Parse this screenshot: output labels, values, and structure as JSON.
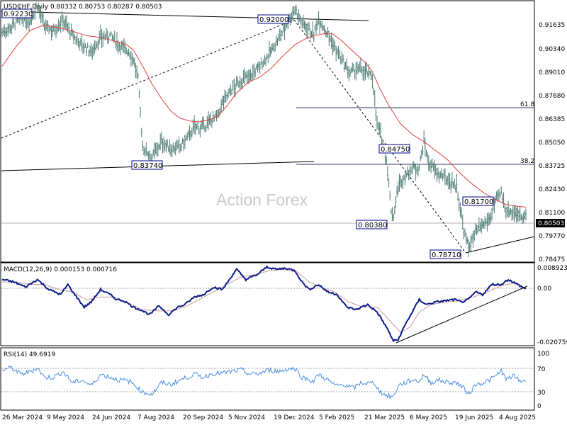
{
  "colors": {
    "price": "#4a7a72",
    "ma": "#e04040",
    "macd": "#0a1a8a",
    "signal": "#c89a9a",
    "rsi": "#4a8ee0",
    "line": "#000000",
    "box_border": "#00008b",
    "grid_dash": "#9a9a9a"
  },
  "header": {
    "price_title": "USDCHF,Daily  0.80332 0.80753 0.80287 0.80503",
    "macd_title": "MACD(12,26,9) 0.000153 0.000716",
    "rsi_title": "RSI(14) 49.6919"
  },
  "watermark": "Action Forex",
  "current_price": "0.80503",
  "chart_data": [
    {
      "type": "line",
      "panel": "price",
      "y_ticks": [
        "0.91635",
        "0.90340",
        "0.89010",
        "0.87680",
        "0.86385",
        "0.85050",
        "0.83725",
        "0.82430",
        "0.81100",
        "0.79770",
        "0.78475"
      ],
      "ylim": [
        0.7805,
        0.9225
      ],
      "x_ticks": [
        "26 Mar 2024",
        "9 May 2024",
        "24 Jun 2024",
        "7 Aug 2024",
        "20 Sep 2024",
        "5 Nov 2024",
        "19 Dec 2024",
        "5 Feb 2025",
        "21 Mar 2025",
        "6 May 2025",
        "19 Jun 2025",
        "4 Aug 2025"
      ],
      "series_close_anchors": [
        [
          0,
          0.907
        ],
        [
          8,
          0.91
        ],
        [
          16,
          0.915
        ],
        [
          24,
          0.913
        ],
        [
          30,
          0.9223
        ],
        [
          36,
          0.91
        ],
        [
          44,
          0.908
        ],
        [
          52,
          0.914
        ],
        [
          60,
          0.905
        ],
        [
          68,
          0.9
        ],
        [
          76,
          0.896
        ],
        [
          84,
          0.904
        ],
        [
          92,
          0.905
        ],
        [
          100,
          0.9
        ],
        [
          108,
          0.896
        ],
        [
          112,
          0.892
        ],
        [
          116,
          0.881
        ],
        [
          120,
          0.843
        ],
        [
          124,
          0.84
        ],
        [
          128,
          0.8374
        ],
        [
          132,
          0.842
        ],
        [
          136,
          0.846
        ],
        [
          144,
          0.842
        ],
        [
          152,
          0.843
        ],
        [
          158,
          0.848
        ],
        [
          164,
          0.854
        ],
        [
          172,
          0.854
        ],
        [
          180,
          0.859
        ],
        [
          184,
          0.86
        ],
        [
          188,
          0.868
        ],
        [
          196,
          0.875
        ],
        [
          204,
          0.88
        ],
        [
          212,
          0.883
        ],
        [
          220,
          0.888
        ],
        [
          228,
          0.895
        ],
        [
          236,
          0.903
        ],
        [
          244,
          0.913
        ],
        [
          250,
          0.92
        ],
        [
          256,
          0.912
        ],
        [
          262,
          0.909
        ],
        [
          266,
          0.905
        ],
        [
          270,
          0.915
        ],
        [
          274,
          0.91
        ],
        [
          278,
          0.906
        ],
        [
          284,
          0.898
        ],
        [
          290,
          0.891
        ],
        [
          296,
          0.884
        ],
        [
          302,
          0.886
        ],
        [
          308,
          0.886
        ],
        [
          312,
          0.884
        ],
        [
          316,
          0.882
        ],
        [
          320,
          0.856
        ],
        [
          324,
          0.8475
        ],
        [
          328,
          0.836
        ],
        [
          332,
          0.808
        ],
        [
          334,
          0.804
        ],
        [
          338,
          0.821
        ],
        [
          344,
          0.827
        ],
        [
          350,
          0.831
        ],
        [
          356,
          0.832
        ],
        [
          360,
          0.846
        ],
        [
          364,
          0.834
        ],
        [
          372,
          0.828
        ],
        [
          380,
          0.825
        ],
        [
          388,
          0.821
        ],
        [
          394,
          0.796
        ],
        [
          398,
          0.7871
        ],
        [
          404,
          0.795
        ],
        [
          410,
          0.799
        ],
        [
          416,
          0.803
        ],
        [
          422,
          0.814
        ],
        [
          426,
          0.817
        ],
        [
          430,
          0.808
        ],
        [
          436,
          0.807
        ],
        [
          442,
          0.805
        ],
        [
          447,
          0.80503
        ]
      ],
      "ma_anchors": [
        [
          0,
          0.888
        ],
        [
          12,
          0.899
        ],
        [
          24,
          0.908
        ],
        [
          36,
          0.911
        ],
        [
          48,
          0.9095
        ],
        [
          60,
          0.9075
        ],
        [
          72,
          0.905
        ],
        [
          84,
          0.904
        ],
        [
          96,
          0.902
        ],
        [
          106,
          0.9
        ],
        [
          112,
          0.897
        ],
        [
          120,
          0.888
        ],
        [
          128,
          0.878
        ],
        [
          136,
          0.87
        ],
        [
          144,
          0.863
        ],
        [
          152,
          0.859
        ],
        [
          160,
          0.8575
        ],
        [
          168,
          0.857
        ],
        [
          176,
          0.858
        ],
        [
          184,
          0.86
        ],
        [
          192,
          0.866
        ],
        [
          200,
          0.873
        ],
        [
          210,
          0.879
        ],
        [
          220,
          0.882
        ],
        [
          230,
          0.887
        ],
        [
          240,
          0.894
        ],
        [
          250,
          0.9
        ],
        [
          258,
          0.903
        ],
        [
          266,
          0.905
        ],
        [
          274,
          0.906
        ],
        [
          282,
          0.906
        ],
        [
          290,
          0.902
        ],
        [
          300,
          0.896
        ],
        [
          310,
          0.89
        ],
        [
          316,
          0.885
        ],
        [
          322,
          0.876
        ],
        [
          330,
          0.866
        ],
        [
          340,
          0.856
        ],
        [
          350,
          0.85
        ],
        [
          360,
          0.846
        ],
        [
          370,
          0.841
        ],
        [
          380,
          0.836
        ],
        [
          390,
          0.829
        ],
        [
          400,
          0.823
        ],
        [
          410,
          0.818
        ],
        [
          420,
          0.814
        ],
        [
          430,
          0.811
        ],
        [
          440,
          0.81
        ],
        [
          447,
          0.8095
        ]
      ],
      "annotations": [
        "0.92230",
        "0.92000",
        "0.83740",
        "0.84750",
        "0.80380",
        "0.81700",
        "0.78710",
        "61.8",
        "38.2"
      ]
    },
    {
      "type": "line",
      "panel": "macd",
      "series_name": "MACD(12,26,9)",
      "y_ticks": [
        "0.008923",
        "0.00",
        "-0.020759"
      ],
      "ylim": [
        -0.0218,
        0.0098
      ],
      "macd_anchors": [
        [
          0,
          0.004
        ],
        [
          10,
          0.003
        ],
        [
          20,
          0.001
        ],
        [
          30,
          0.004
        ],
        [
          40,
          0.0
        ],
        [
          50,
          -0.002
        ],
        [
          56,
          0.002
        ],
        [
          62,
          -0.002
        ],
        [
          70,
          -0.007
        ],
        [
          76,
          -0.005
        ],
        [
          84,
          0.0
        ],
        [
          92,
          -0.002
        ],
        [
          98,
          -0.004
        ],
        [
          104,
          -0.0045
        ],
        [
          112,
          -0.007
        ],
        [
          118,
          -0.008
        ],
        [
          126,
          -0.01
        ],
        [
          134,
          -0.0065
        ],
        [
          142,
          -0.01
        ],
        [
          150,
          -0.007
        ],
        [
          156,
          -0.006
        ],
        [
          164,
          -0.003
        ],
        [
          172,
          -0.002
        ],
        [
          180,
          0.001
        ],
        [
          188,
          0.0
        ],
        [
          194,
          0.004
        ],
        [
          200,
          0.008
        ],
        [
          208,
          0.004
        ],
        [
          218,
          0.006
        ],
        [
          226,
          0.009
        ],
        [
          234,
          0.008
        ],
        [
          242,
          0.0085
        ],
        [
          250,
          0.0075
        ],
        [
          256,
          0.003
        ],
        [
          262,
          0.0
        ],
        [
          270,
          0.002
        ],
        [
          278,
          -0.001
        ],
        [
          286,
          -0.002
        ],
        [
          294,
          -0.007
        ],
        [
          302,
          -0.008
        ],
        [
          312,
          -0.006
        ],
        [
          320,
          -0.009
        ],
        [
          328,
          -0.015
        ],
        [
          334,
          -0.0205
        ],
        [
          338,
          -0.02
        ],
        [
          344,
          -0.014
        ],
        [
          350,
          -0.009
        ],
        [
          356,
          -0.004
        ],
        [
          362,
          -0.006
        ],
        [
          370,
          -0.005
        ],
        [
          378,
          -0.0045
        ],
        [
          386,
          -0.004
        ],
        [
          392,
          -0.005
        ],
        [
          398,
          -0.004
        ],
        [
          404,
          -0.001
        ],
        [
          410,
          -0.002
        ],
        [
          418,
          0.002
        ],
        [
          426,
          0.002
        ],
        [
          432,
          0.004
        ],
        [
          440,
          0.002
        ],
        [
          447,
          0.0002
        ]
      ],
      "signal_anchors": [
        [
          0,
          0.003
        ],
        [
          12,
          0.003
        ],
        [
          24,
          0.002
        ],
        [
          36,
          0.002
        ],
        [
          48,
          0.0
        ],
        [
          60,
          -0.001
        ],
        [
          72,
          -0.004
        ],
        [
          84,
          -0.003
        ],
        [
          96,
          -0.003
        ],
        [
          108,
          -0.0055
        ],
        [
          120,
          -0.008
        ],
        [
          132,
          -0.0085
        ],
        [
          144,
          -0.0085
        ],
        [
          156,
          -0.007
        ],
        [
          168,
          -0.004
        ],
        [
          180,
          -0.001
        ],
        [
          192,
          0.002
        ],
        [
          204,
          0.005
        ],
        [
          216,
          0.006
        ],
        [
          228,
          0.0075
        ],
        [
          240,
          0.008
        ],
        [
          252,
          0.007
        ],
        [
          262,
          0.003
        ],
        [
          272,
          0.001
        ],
        [
          284,
          -0.001
        ],
        [
          296,
          -0.005
        ],
        [
          308,
          -0.007
        ],
        [
          320,
          -0.007
        ],
        [
          330,
          -0.012
        ],
        [
          340,
          -0.017
        ],
        [
          348,
          -0.015
        ],
        [
          356,
          -0.009
        ],
        [
          366,
          -0.006
        ],
        [
          378,
          -0.005
        ],
        [
          390,
          -0.0045
        ],
        [
          402,
          -0.003
        ],
        [
          414,
          -0.001
        ],
        [
          426,
          0.0015
        ],
        [
          436,
          0.0025
        ],
        [
          447,
          0.0007
        ]
      ]
    },
    {
      "type": "line",
      "panel": "rsi",
      "series_name": "RSI(14)",
      "y_ticks": [
        "100",
        "70",
        "30",
        "0"
      ],
      "ylim": [
        0,
        100
      ],
      "rsi_anchors": [
        [
          0,
          68
        ],
        [
          8,
          72
        ],
        [
          16,
          60
        ],
        [
          24,
          65
        ],
        [
          30,
          72
        ],
        [
          36,
          55
        ],
        [
          44,
          55
        ],
        [
          52,
          65
        ],
        [
          60,
          45
        ],
        [
          68,
          50
        ],
        [
          76,
          40
        ],
        [
          84,
          60
        ],
        [
          92,
          55
        ],
        [
          100,
          50
        ],
        [
          108,
          48
        ],
        [
          114,
          40
        ],
        [
          120,
          28
        ],
        [
          128,
          25
        ],
        [
          136,
          45
        ],
        [
          144,
          42
        ],
        [
          152,
          50
        ],
        [
          158,
          55
        ],
        [
          164,
          60
        ],
        [
          172,
          55
        ],
        [
          180,
          62
        ],
        [
          188,
          62
        ],
        [
          196,
          65
        ],
        [
          204,
          68
        ],
        [
          212,
          60
        ],
        [
          220,
          62
        ],
        [
          228,
          68
        ],
        [
          236,
          65
        ],
        [
          244,
          70
        ],
        [
          250,
          70
        ],
        [
          256,
          55
        ],
        [
          262,
          50
        ],
        [
          266,
          48
        ],
        [
          270,
          60
        ],
        [
          278,
          50
        ],
        [
          284,
          40
        ],
        [
          292,
          42
        ],
        [
          300,
          35
        ],
        [
          306,
          45
        ],
        [
          312,
          44
        ],
        [
          318,
          45
        ],
        [
          322,
          30
        ],
        [
          328,
          22
        ],
        [
          334,
          20
        ],
        [
          338,
          40
        ],
        [
          344,
          45
        ],
        [
          350,
          50
        ],
        [
          356,
          48
        ],
        [
          360,
          60
        ],
        [
          366,
          45
        ],
        [
          372,
          50
        ],
        [
          380,
          46
        ],
        [
          388,
          45
        ],
        [
          394,
          35
        ],
        [
          398,
          25
        ],
        [
          404,
          42
        ],
        [
          410,
          45
        ],
        [
          416,
          50
        ],
        [
          422,
          58
        ],
        [
          426,
          68
        ],
        [
          430,
          50
        ],
        [
          436,
          58
        ],
        [
          442,
          48
        ],
        [
          447,
          49.69
        ]
      ]
    }
  ]
}
